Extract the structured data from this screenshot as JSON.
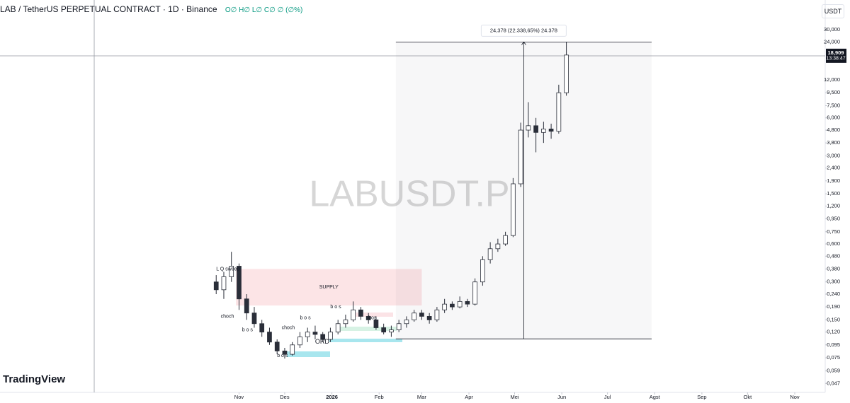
{
  "header": {
    "title": "LAB / TetherUS PERPETUAL CONTRACT · 1D · Binance",
    "ohlc": "O∅ H∅ L∅ C∅ ∅ (∅%)",
    "currency": "USDT",
    "logo": "TradingView"
  },
  "chart_data": {
    "type": "candlestick",
    "watermark": "LABUSDT.P",
    "log_scale": true,
    "up_color": "#ffffff",
    "down_color": "#2a2e39",
    "x": [
      -15,
      -10,
      -5,
      0,
      5,
      10,
      15,
      20,
      25,
      30,
      35,
      40,
      45,
      50,
      55,
      60,
      65,
      70,
      75,
      80,
      85,
      90,
      95,
      100,
      105,
      110,
      115,
      120,
      125,
      130,
      135,
      140,
      145,
      150,
      155,
      160,
      165,
      170,
      175,
      180,
      185,
      190,
      195,
      200,
      205,
      210,
      215
    ],
    "open": [
      0.3,
      0.26,
      0.33,
      0.4,
      0.22,
      0.17,
      0.14,
      0.12,
      0.1,
      0.085,
      0.08,
      0.095,
      0.11,
      0.12,
      0.115,
      0.105,
      0.12,
      0.14,
      0.15,
      0.18,
      0.16,
      0.15,
      0.13,
      0.12,
      0.125,
      0.14,
      0.15,
      0.17,
      0.16,
      0.15,
      0.18,
      0.2,
      0.19,
      0.21,
      0.2,
      0.3,
      0.45,
      0.55,
      0.6,
      0.7,
      1.8,
      4.8,
      5.2,
      4.6,
      4.9,
      4.7,
      9.5
    ],
    "high": [
      0.34,
      0.36,
      0.52,
      0.42,
      0.24,
      0.19,
      0.15,
      0.13,
      0.105,
      0.09,
      0.1,
      0.12,
      0.13,
      0.135,
      0.12,
      0.13,
      0.15,
      0.165,
      0.21,
      0.19,
      0.17,
      0.16,
      0.14,
      0.135,
      0.15,
      0.16,
      0.18,
      0.18,
      0.17,
      0.19,
      0.22,
      0.21,
      0.23,
      0.22,
      0.32,
      0.48,
      0.62,
      0.66,
      0.75,
      2.0,
      5.5,
      8.0,
      6.0,
      5.6,
      5.4,
      11,
      24
    ],
    "low": [
      0.24,
      0.22,
      0.3,
      0.18,
      0.15,
      0.13,
      0.11,
      0.095,
      0.08,
      0.074,
      0.078,
      0.09,
      0.1,
      0.105,
      0.1,
      0.1,
      0.115,
      0.13,
      0.145,
      0.15,
      0.14,
      0.125,
      0.115,
      0.11,
      0.12,
      0.13,
      0.145,
      0.15,
      0.14,
      0.145,
      0.17,
      0.18,
      0.185,
      0.19,
      0.195,
      0.28,
      0.42,
      0.52,
      0.58,
      0.68,
      1.7,
      4.2,
      3.2,
      3.8,
      4.1,
      4.5,
      9
    ],
    "close": [
      0.26,
      0.33,
      0.4,
      0.22,
      0.17,
      0.14,
      0.12,
      0.1,
      0.085,
      0.08,
      0.095,
      0.11,
      0.12,
      0.115,
      0.105,
      0.12,
      0.14,
      0.15,
      0.18,
      0.16,
      0.15,
      0.13,
      0.12,
      0.125,
      0.14,
      0.15,
      0.17,
      0.16,
      0.15,
      0.18,
      0.2,
      0.19,
      0.21,
      0.2,
      0.3,
      0.45,
      0.55,
      0.6,
      0.7,
      1.8,
      4.8,
      5.2,
      4.6,
      4.9,
      4.7,
      9.5,
      18.909
    ],
    "xlim": [
      -157,
      385
    ],
    "xticks": [
      {
        "value": 0,
        "label": "Nov"
      },
      {
        "value": 30,
        "label": "Des"
      },
      {
        "value": 61,
        "label": "2026"
      },
      {
        "value": 92,
        "label": "Feb"
      },
      {
        "value": 120,
        "label": "Mar"
      },
      {
        "value": 151,
        "label": "Apr"
      },
      {
        "value": 181,
        "label": "Mei"
      },
      {
        "value": 212,
        "label": "Jun"
      },
      {
        "value": 242,
        "label": "Jul"
      },
      {
        "value": 273,
        "label": "Agst"
      },
      {
        "value": 304,
        "label": "Sep"
      },
      {
        "value": 334,
        "label": "Okt"
      },
      {
        "value": 365,
        "label": "Nov"
      }
    ],
    "ylim": [
      0.042,
      36
    ],
    "yticks": [
      {
        "value": 30,
        "label": "30,000"
      },
      {
        "value": 24,
        "label": "24,000"
      },
      {
        "value": 12,
        "label": "12,000"
      },
      {
        "value": 9.5,
        "label": "9,500"
      },
      {
        "value": 7.5,
        "label": "7,500"
      },
      {
        "value": 6,
        "label": "6,000"
      },
      {
        "value": 4.8,
        "label": "4,800"
      },
      {
        "value": 3.8,
        "label": "3,800"
      },
      {
        "value": 3,
        "label": "3,000"
      },
      {
        "value": 2.4,
        "label": "2,400"
      },
      {
        "value": 1.9,
        "label": "1,900"
      },
      {
        "value": 1.5,
        "label": "1,500"
      },
      {
        "value": 1.2,
        "label": "1,200"
      },
      {
        "value": 0.95,
        "label": "0,950"
      },
      {
        "value": 0.75,
        "label": "0,750"
      },
      {
        "value": 0.6,
        "label": "0,600"
      },
      {
        "value": 0.48,
        "label": "0,480"
      },
      {
        "value": 0.38,
        "label": "0,380"
      },
      {
        "value": 0.3,
        "label": "0,300"
      },
      {
        "value": 0.24,
        "label": "0,240"
      },
      {
        "value": 0.19,
        "label": "0,190"
      },
      {
        "value": 0.15,
        "label": "0,150"
      },
      {
        "value": 0.12,
        "label": "0,120"
      },
      {
        "value": 0.095,
        "label": "0,095"
      },
      {
        "value": 0.075,
        "label": "0,075"
      },
      {
        "value": 0.059,
        "label": "0,059"
      },
      {
        "value": 0.047,
        "label": "0,047"
      }
    ],
    "last_price": {
      "value": 18.909,
      "label": "18,909",
      "countdown": "13:38:47"
    },
    "zone": {
      "label": "SUPPLY",
      "top": 0.38,
      "bottom": 0.195,
      "start": -2,
      "end": 120,
      "color": "#fce4e6"
    },
    "measure": {
      "label": "24,378 (22.338,65%) 24.378",
      "from": 0.106,
      "to": 24,
      "start": 103,
      "end": 271,
      "at": 187
    },
    "annotations": [
      {
        "text": "L Q sweep",
        "x": -15,
        "price": 0.38
      },
      {
        "text": "choch",
        "x": -12,
        "price": 0.16
      },
      {
        "text": "b o s",
        "x": 2,
        "price": 0.125
      },
      {
        "text": "choch",
        "x": 28,
        "price": 0.13
      },
      {
        "text": "b o s",
        "x": 40,
        "price": 0.155
      },
      {
        "text": "b o s",
        "x": 60,
        "price": 0.19
      },
      {
        "text": "bos",
        "x": 85,
        "price": 0.155
      },
      {
        "text": "ORD",
        "x": 50,
        "price": 0.1
      },
      {
        "text": "b o s",
        "x": 25,
        "price": 0.078
      }
    ]
  }
}
